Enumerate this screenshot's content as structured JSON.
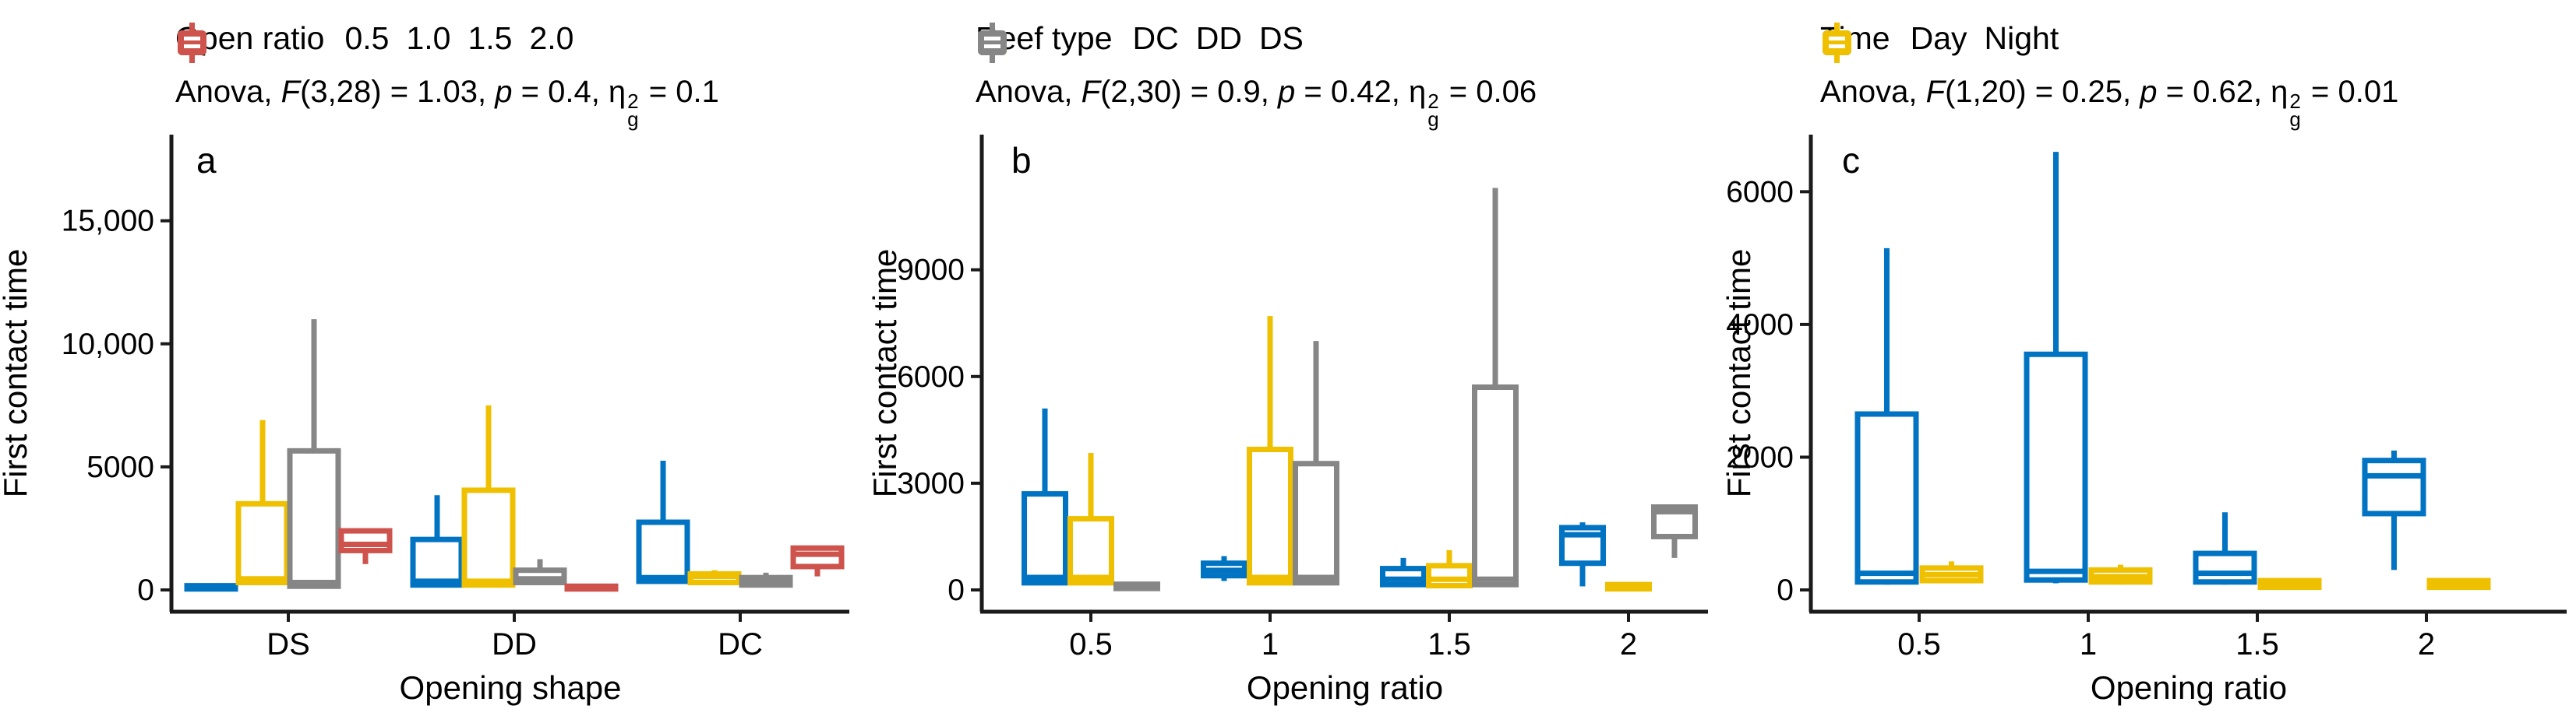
{
  "figure": {
    "background": "#FFFFFF",
    "axis_color": "#1a1a1a",
    "text_color": "#000000"
  },
  "chart_data": {
    "type": "boxplot",
    "panels": [
      {
        "letter": "a",
        "legend": {
          "title": "Open ratio",
          "items": [
            {
              "label": "0.5",
              "color": "#0073C2"
            },
            {
              "label": "1.0",
              "color": "#EFC000"
            },
            {
              "label": "1.5",
              "color": "#868686"
            },
            {
              "label": "2.0",
              "color": "#CD534C"
            }
          ]
        },
        "anova_segments": [
          {
            "t": "Anova, "
          },
          {
            "t": "F",
            "i": 1
          },
          {
            "t": "(3,28) = 1.03, "
          },
          {
            "t": "p",
            "i": 1
          },
          {
            "t": " = 0.4, "
          },
          {
            "t": "eta_g_sq",
            "glyph": 1
          },
          {
            "t": " = 0.1"
          }
        ],
        "x_title": "Opening shape",
        "y_title": "First contact time",
        "x_categories": [
          "DS",
          "DD",
          "DC"
        ],
        "y_ticks": {
          "values": [
            0,
            5000,
            10000,
            15000
          ],
          "labels": [
            "0",
            "5000",
            "10,000",
            "15,000"
          ]
        },
        "ylim": [
          0,
          18500
        ],
        "grid": false,
        "legend_position": "top-left",
        "series": [
          {
            "name": "0.5",
            "color": "#0073C2",
            "boxes": [
              {
                "lo": 40,
                "q1": 40,
                "med": 100,
                "q3": 170,
                "hi": 170
              },
              {
                "lo": 150,
                "q1": 200,
                "med": 350,
                "q3": 2050,
                "hi": 3850
              },
              {
                "lo": 300,
                "q1": 350,
                "med": 500,
                "q3": 2750,
                "hi": 5250
              }
            ]
          },
          {
            "name": "1.0",
            "color": "#EFC000",
            "boxes": [
              {
                "lo": 250,
                "q1": 300,
                "med": 450,
                "q3": 3500,
                "hi": 6900
              },
              {
                "lo": 150,
                "q1": 200,
                "med": 350,
                "q3": 4050,
                "hi": 7500
              },
              {
                "lo": 250,
                "q1": 300,
                "med": 550,
                "q3": 650,
                "hi": 800
              }
            ]
          },
          {
            "name": "1.5",
            "color": "#868686",
            "boxes": [
              {
                "lo": 100,
                "q1": 150,
                "med": 300,
                "q3": 5650,
                "hi": 11000
              },
              {
                "lo": 250,
                "q1": 300,
                "med": 450,
                "q3": 800,
                "hi": 1250
              },
              {
                "lo": 150,
                "q1": 200,
                "med": 350,
                "q3": 500,
                "hi": 700
              }
            ]
          },
          {
            "name": "2.0",
            "color": "#CD534C",
            "boxes": [
              {
                "lo": 1050,
                "q1": 1600,
                "med": 1850,
                "q3": 2400,
                "hi": 2400
              },
              {
                "lo": 40,
                "q1": 40,
                "med": 90,
                "q3": 150,
                "hi": 150
              },
              {
                "lo": 550,
                "q1": 950,
                "med": 1450,
                "q3": 1700,
                "hi": 1800
              }
            ]
          }
        ]
      },
      {
        "letter": "b",
        "legend": {
          "title": "Reef type",
          "items": [
            {
              "label": "DC",
              "color": "#0073C2"
            },
            {
              "label": "DD",
              "color": "#EFC000"
            },
            {
              "label": "DS",
              "color": "#868686"
            }
          ]
        },
        "anova_segments": [
          {
            "t": "Anova, "
          },
          {
            "t": "F",
            "i": 1
          },
          {
            "t": "(2,30) = 0.9, "
          },
          {
            "t": "p",
            "i": 1
          },
          {
            "t": " = 0.42, "
          },
          {
            "t": "eta_g_sq",
            "glyph": 1
          },
          {
            "t": " = 0.06"
          }
        ],
        "x_title": "Opening ratio",
        "y_title": "First contact time",
        "x_categories": [
          "0.5",
          "1",
          "1.5",
          "2"
        ],
        "y_ticks": {
          "values": [
            0,
            3000,
            6000,
            9000
          ],
          "labels": [
            "0",
            "3000",
            "6000",
            "9000"
          ]
        },
        "ylim": [
          0,
          12800
        ],
        "grid": false,
        "legend_position": "top-left",
        "series": [
          {
            "name": "DC",
            "color": "#0073C2",
            "boxes": [
              {
                "lo": 150,
                "q1": 200,
                "med": 350,
                "q3": 2700,
                "hi": 5100
              },
              {
                "lo": 250,
                "q1": 400,
                "med": 550,
                "q3": 750,
                "hi": 950
              },
              {
                "lo": 100,
                "q1": 150,
                "med": 300,
                "q3": 600,
                "hi": 900
              },
              {
                "lo": 100,
                "q1": 750,
                "med": 1550,
                "q3": 1750,
                "hi": 1900
              }
            ]
          },
          {
            "name": "DD",
            "color": "#EFC000",
            "boxes": [
              {
                "lo": 150,
                "q1": 200,
                "med": 350,
                "q3": 2000,
                "hi": 3850
              },
              {
                "lo": 150,
                "q1": 200,
                "med": 350,
                "q3": 3950,
                "hi": 7700
              },
              {
                "lo": 80,
                "q1": 120,
                "med": 300,
                "q3": 680,
                "hi": 1120
              },
              {
                "lo": 30,
                "q1": 30,
                "med": 90,
                "q3": 150,
                "hi": 150
              }
            ]
          },
          {
            "name": "DS",
            "color": "#868686",
            "boxes": [
              {
                "lo": 40,
                "q1": 40,
                "med": 100,
                "q3": 160,
                "hi": 160
              },
              {
                "lo": 150,
                "q1": 200,
                "med": 350,
                "q3": 3550,
                "hi": 7000
              },
              {
                "lo": 100,
                "q1": 150,
                "med": 300,
                "q3": 5700,
                "hi": 11300
              },
              {
                "lo": 900,
                "q1": 1500,
                "med": 2200,
                "q3": 2330,
                "hi": 2330
              }
            ]
          }
        ]
      },
      {
        "letter": "c",
        "legend": {
          "title": "Time",
          "items": [
            {
              "label": "Day",
              "color": "#0073C2"
            },
            {
              "label": "Night",
              "color": "#EFC000"
            }
          ]
        },
        "anova_segments": [
          {
            "t": "Anova, "
          },
          {
            "t": "F",
            "i": 1
          },
          {
            "t": "(1,20) = 0.25, "
          },
          {
            "t": "p",
            "i": 1
          },
          {
            "t": " = 0.62, "
          },
          {
            "t": "eta_g_sq",
            "glyph": 1
          },
          {
            "t": " = 0.01"
          }
        ],
        "x_title": "Opening ratio",
        "y_title": "First contact time",
        "x_categories": [
          "0.5",
          "1",
          "1.5",
          "2"
        ],
        "y_ticks": {
          "values": [
            0,
            2000,
            4000,
            6000
          ],
          "labels": [
            "0",
            "2000",
            "4000",
            "6000"
          ]
        },
        "ylim": [
          0,
          6860
        ],
        "grid": false,
        "legend_position": "top-left",
        "series": [
          {
            "name": "Day",
            "color": "#0073C2",
            "boxes": [
              {
                "lo": 80,
                "q1": 120,
                "med": 250,
                "q3": 2650,
                "hi": 5150
              },
              {
                "lo": 100,
                "q1": 150,
                "med": 280,
                "q3": 3550,
                "hi": 6600
              },
              {
                "lo": 80,
                "q1": 120,
                "med": 250,
                "q3": 550,
                "hi": 1170
              },
              {
                "lo": 300,
                "q1": 1150,
                "med": 1720,
                "q3": 1950,
                "hi": 2100
              }
            ]
          },
          {
            "name": "Night",
            "color": "#EFC000",
            "boxes": [
              {
                "lo": 100,
                "q1": 140,
                "med": 230,
                "q3": 330,
                "hi": 430
              },
              {
                "lo": 80,
                "q1": 120,
                "med": 200,
                "q3": 300,
                "hi": 380
              },
              {
                "lo": 40,
                "q1": 40,
                "med": 90,
                "q3": 140,
                "hi": 140
              },
              {
                "lo": 40,
                "q1": 40,
                "med": 90,
                "q3": 140,
                "hi": 140
              }
            ]
          }
        ]
      }
    ]
  }
}
